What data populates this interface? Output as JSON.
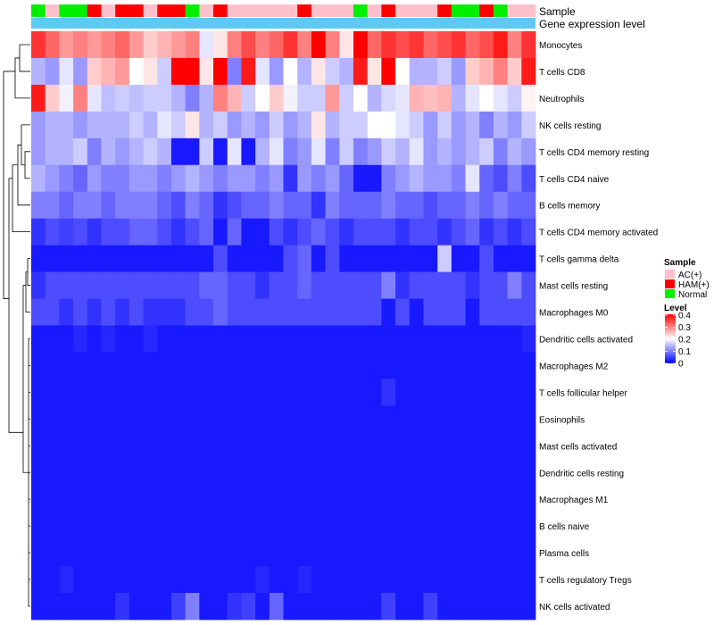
{
  "chart_data": {
    "type": "heatmap",
    "title": "",
    "annotation_labels": {
      "sample": "Sample",
      "expression": "Gene expression level"
    },
    "legend_sample": {
      "title": "Sample",
      "entries": [
        {
          "label": "AC(+)",
          "color": "#ffc0cb"
        },
        {
          "label": "HAM(+)",
          "color": "#ff0000"
        },
        {
          "label": "Normal",
          "color": "#00ee00"
        }
      ]
    },
    "legend_level": {
      "title": "Level",
      "ticks": [
        "0.4",
        "0.3",
        "0.2",
        "0.1",
        "0"
      ],
      "min": 0,
      "max": 0.4,
      "colors": {
        "low": "#0000ff",
        "mid": "#ffffff",
        "high": "#ff0000"
      }
    },
    "expression_bar_color": "#5ec9f5",
    "samples": [
      "Normal",
      "AC(+)",
      "Normal",
      "Normal",
      "HAM(+)",
      "AC(+)",
      "HAM(+)",
      "HAM(+)",
      "AC(+)",
      "HAM(+)",
      "HAM(+)",
      "Normal",
      "AC(+)",
      "HAM(+)",
      "AC(+)",
      "AC(+)",
      "AC(+)",
      "AC(+)",
      "AC(+)",
      "HAM(+)",
      "AC(+)",
      "AC(+)",
      "AC(+)",
      "Normal",
      "AC(+)",
      "HAM(+)",
      "AC(+)",
      "AC(+)",
      "AC(+)",
      "HAM(+)",
      "Normal",
      "Normal",
      "HAM(+)",
      "Normal",
      "AC(+)",
      "AC(+)"
    ],
    "rows": [
      "Monocytes",
      "T cells CD8",
      "Neutrophils",
      "NK cells resting",
      "T cells CD4 memory resting",
      "T cells CD4 naive",
      "B cells memory",
      "T cells CD4 memory activated",
      "T cells gamma delta",
      "Mast cells resting",
      "Macrophages M0",
      "Dendritic cells activated",
      "Macrophages M2",
      "T cells follicular helper",
      "Eosinophils",
      "Mast cells activated",
      "Dendritic cells resting",
      "Macrophages M1",
      "B cells naive",
      "Plasma cells",
      "T cells regulatory  Tregs",
      "NK cells activated"
    ],
    "values": [
      [
        0.36,
        0.32,
        0.28,
        0.3,
        0.28,
        0.3,
        0.32,
        0.28,
        0.24,
        0.26,
        0.28,
        0.3,
        0.18,
        0.22,
        0.3,
        0.34,
        0.3,
        0.32,
        0.36,
        0.3,
        0.4,
        0.3,
        0.22,
        0.4,
        0.32,
        0.36,
        0.34,
        0.36,
        0.32,
        0.34,
        0.36,
        0.32,
        0.34,
        0.38,
        0.3,
        0.36
      ],
      [
        0.14,
        0.12,
        0.18,
        0.12,
        0.24,
        0.26,
        0.28,
        0.2,
        0.22,
        0.16,
        0.4,
        0.4,
        0.22,
        0.4,
        0.1,
        0.38,
        0.18,
        0.12,
        0.2,
        0.14,
        0.22,
        0.16,
        0.14,
        0.38,
        0.22,
        0.4,
        0.2,
        0.14,
        0.14,
        0.16,
        0.12,
        0.24,
        0.26,
        0.3,
        0.24,
        0.38
      ],
      [
        0.38,
        0.24,
        0.19,
        0.3,
        0.18,
        0.15,
        0.16,
        0.15,
        0.16,
        0.16,
        0.14,
        0.1,
        0.14,
        0.3,
        0.26,
        0.16,
        0.2,
        0.24,
        0.19,
        0.16,
        0.16,
        0.28,
        0.16,
        0.2,
        0.14,
        0.17,
        0.18,
        0.26,
        0.25,
        0.26,
        0.14,
        0.18,
        0.2,
        0.18,
        0.16,
        0.21
      ],
      [
        0.12,
        0.14,
        0.14,
        0.12,
        0.14,
        0.14,
        0.14,
        0.16,
        0.14,
        0.18,
        0.16,
        0.22,
        0.14,
        0.16,
        0.12,
        0.14,
        0.12,
        0.16,
        0.12,
        0.14,
        0.22,
        0.14,
        0.16,
        0.16,
        0.2,
        0.2,
        0.18,
        0.16,
        0.12,
        0.16,
        0.12,
        0.14,
        0.1,
        0.14,
        0.12,
        0.16
      ],
      [
        0.12,
        0.14,
        0.14,
        0.16,
        0.1,
        0.14,
        0.12,
        0.14,
        0.16,
        0.14,
        0.02,
        0.02,
        0.16,
        0.02,
        0.18,
        0.02,
        0.14,
        0.18,
        0.1,
        0.12,
        0.18,
        0.1,
        0.16,
        0.1,
        0.12,
        0.16,
        0.14,
        0.18,
        0.12,
        0.14,
        0.12,
        0.14,
        0.16,
        0.1,
        0.14,
        0.12
      ],
      [
        0.14,
        0.12,
        0.1,
        0.08,
        0.12,
        0.1,
        0.1,
        0.12,
        0.12,
        0.1,
        0.12,
        0.14,
        0.12,
        0.1,
        0.12,
        0.12,
        0.1,
        0.12,
        0.04,
        0.12,
        0.1,
        0.12,
        0.08,
        0.02,
        0.02,
        0.1,
        0.12,
        0.14,
        0.12,
        0.12,
        0.1,
        0.18,
        0.08,
        0.06,
        0.1,
        0.06
      ],
      [
        0.1,
        0.1,
        0.08,
        0.1,
        0.1,
        0.08,
        0.1,
        0.1,
        0.1,
        0.08,
        0.06,
        0.1,
        0.08,
        0.04,
        0.06,
        0.08,
        0.08,
        0.1,
        0.08,
        0.08,
        0.04,
        0.1,
        0.08,
        0.08,
        0.08,
        0.1,
        0.08,
        0.08,
        0.06,
        0.08,
        0.08,
        0.1,
        0.08,
        0.1,
        0.08,
        0.08
      ],
      [
        0.04,
        0.06,
        0.05,
        0.06,
        0.04,
        0.06,
        0.06,
        0.08,
        0.08,
        0.06,
        0.04,
        0.06,
        0.08,
        0.02,
        0.08,
        0.02,
        0.02,
        0.06,
        0.04,
        0.06,
        0.08,
        0.06,
        0.04,
        0.06,
        0.06,
        0.06,
        0.04,
        0.06,
        0.06,
        0.04,
        0.06,
        0.08,
        0.04,
        0.06,
        0.04,
        0.06
      ],
      [
        0.02,
        0.02,
        0.02,
        0.02,
        0.02,
        0.02,
        0.02,
        0.02,
        0.02,
        0.02,
        0.02,
        0.02,
        0.02,
        0.06,
        0.02,
        0.02,
        0.02,
        0.02,
        0.06,
        0.08,
        0.02,
        0.06,
        0.02,
        0.02,
        0.02,
        0.02,
        0.02,
        0.02,
        0.02,
        0.16,
        0.02,
        0.02,
        0.06,
        0.02,
        0.02,
        0.02
      ],
      [
        0.04,
        0.06,
        0.06,
        0.06,
        0.06,
        0.06,
        0.06,
        0.06,
        0.06,
        0.06,
        0.06,
        0.06,
        0.08,
        0.08,
        0.06,
        0.06,
        0.04,
        0.06,
        0.06,
        0.08,
        0.06,
        0.06,
        0.06,
        0.06,
        0.06,
        0.1,
        0.04,
        0.06,
        0.06,
        0.06,
        0.06,
        0.04,
        0.06,
        0.06,
        0.1,
        0.06
      ],
      [
        0.06,
        0.06,
        0.04,
        0.06,
        0.04,
        0.06,
        0.04,
        0.06,
        0.04,
        0.04,
        0.04,
        0.06,
        0.06,
        0.08,
        0.06,
        0.06,
        0.06,
        0.06,
        0.06,
        0.06,
        0.06,
        0.06,
        0.06,
        0.06,
        0.06,
        0.02,
        0.06,
        0.02,
        0.06,
        0.06,
        0.06,
        0.02,
        0.06,
        0.06,
        0.06,
        0.06
      ],
      [
        0.02,
        0.02,
        0.02,
        0.03,
        0.02,
        0.03,
        0.02,
        0.02,
        0.03,
        0.02,
        0.02,
        0.02,
        0.02,
        0.02,
        0.02,
        0.02,
        0.02,
        0.02,
        0.02,
        0.02,
        0.02,
        0.02,
        0.02,
        0.02,
        0.02,
        0.02,
        0.02,
        0.02,
        0.02,
        0.02,
        0.02,
        0.02,
        0.02,
        0.02,
        0.02,
        0.03
      ],
      [
        0.02,
        0.02,
        0.02,
        0.02,
        0.02,
        0.02,
        0.02,
        0.02,
        0.02,
        0.02,
        0.02,
        0.02,
        0.02,
        0.02,
        0.02,
        0.02,
        0.02,
        0.02,
        0.02,
        0.02,
        0.02,
        0.02,
        0.02,
        0.02,
        0.02,
        0.02,
        0.02,
        0.02,
        0.02,
        0.02,
        0.02,
        0.02,
        0.02,
        0.02,
        0.02,
        0.02
      ],
      [
        0.02,
        0.02,
        0.02,
        0.02,
        0.02,
        0.02,
        0.02,
        0.02,
        0.02,
        0.02,
        0.02,
        0.02,
        0.02,
        0.02,
        0.02,
        0.02,
        0.02,
        0.02,
        0.02,
        0.02,
        0.02,
        0.02,
        0.02,
        0.02,
        0.02,
        0.04,
        0.02,
        0.02,
        0.02,
        0.02,
        0.02,
        0.02,
        0.02,
        0.02,
        0.02,
        0.02
      ],
      [
        0.02,
        0.02,
        0.02,
        0.02,
        0.02,
        0.02,
        0.02,
        0.02,
        0.02,
        0.02,
        0.02,
        0.02,
        0.02,
        0.02,
        0.02,
        0.02,
        0.02,
        0.02,
        0.02,
        0.02,
        0.02,
        0.02,
        0.02,
        0.02,
        0.02,
        0.02,
        0.02,
        0.02,
        0.02,
        0.02,
        0.02,
        0.02,
        0.02,
        0.02,
        0.02,
        0.02
      ],
      [
        0.02,
        0.02,
        0.02,
        0.02,
        0.02,
        0.02,
        0.02,
        0.02,
        0.02,
        0.02,
        0.02,
        0.02,
        0.02,
        0.02,
        0.02,
        0.02,
        0.02,
        0.02,
        0.02,
        0.02,
        0.02,
        0.02,
        0.02,
        0.02,
        0.02,
        0.02,
        0.02,
        0.02,
        0.02,
        0.02,
        0.02,
        0.02,
        0.02,
        0.02,
        0.02,
        0.02
      ],
      [
        0.02,
        0.02,
        0.02,
        0.02,
        0.02,
        0.02,
        0.02,
        0.02,
        0.02,
        0.02,
        0.02,
        0.02,
        0.02,
        0.02,
        0.02,
        0.02,
        0.02,
        0.02,
        0.02,
        0.02,
        0.02,
        0.02,
        0.02,
        0.02,
        0.02,
        0.02,
        0.02,
        0.02,
        0.02,
        0.02,
        0.02,
        0.02,
        0.02,
        0.02,
        0.02,
        0.02
      ],
      [
        0.02,
        0.02,
        0.02,
        0.02,
        0.02,
        0.02,
        0.02,
        0.02,
        0.02,
        0.02,
        0.02,
        0.02,
        0.02,
        0.02,
        0.02,
        0.02,
        0.02,
        0.02,
        0.02,
        0.02,
        0.02,
        0.02,
        0.02,
        0.02,
        0.02,
        0.02,
        0.02,
        0.02,
        0.02,
        0.02,
        0.02,
        0.02,
        0.02,
        0.02,
        0.02,
        0.02
      ],
      [
        0.02,
        0.02,
        0.02,
        0.02,
        0.02,
        0.02,
        0.02,
        0.02,
        0.02,
        0.02,
        0.02,
        0.02,
        0.02,
        0.02,
        0.02,
        0.02,
        0.02,
        0.02,
        0.02,
        0.02,
        0.02,
        0.02,
        0.02,
        0.02,
        0.02,
        0.02,
        0.02,
        0.02,
        0.02,
        0.02,
        0.02,
        0.02,
        0.02,
        0.02,
        0.02,
        0.02
      ],
      [
        0.02,
        0.02,
        0.02,
        0.02,
        0.02,
        0.02,
        0.02,
        0.02,
        0.02,
        0.02,
        0.02,
        0.02,
        0.02,
        0.02,
        0.02,
        0.02,
        0.02,
        0.02,
        0.02,
        0.02,
        0.02,
        0.02,
        0.02,
        0.02,
        0.02,
        0.02,
        0.02,
        0.02,
        0.02,
        0.02,
        0.02,
        0.02,
        0.02,
        0.02,
        0.02,
        0.02
      ],
      [
        0.02,
        0.02,
        0.03,
        0.02,
        0.02,
        0.02,
        0.02,
        0.02,
        0.02,
        0.02,
        0.02,
        0.02,
        0.02,
        0.02,
        0.02,
        0.02,
        0.03,
        0.02,
        0.02,
        0.03,
        0.02,
        0.02,
        0.02,
        0.02,
        0.02,
        0.02,
        0.02,
        0.02,
        0.02,
        0.02,
        0.02,
        0.02,
        0.02,
        0.02,
        0.02,
        0.02
      ],
      [
        0.02,
        0.02,
        0.02,
        0.02,
        0.02,
        0.02,
        0.04,
        0.02,
        0.02,
        0.02,
        0.05,
        0.1,
        0.02,
        0.02,
        0.04,
        0.05,
        0.02,
        0.08,
        0.02,
        0.02,
        0.02,
        0.02,
        0.02,
        0.02,
        0.02,
        0.05,
        0.02,
        0.02,
        0.05,
        0.02,
        0.02,
        0.02,
        0.02,
        0.02,
        0.02,
        0.02
      ]
    ]
  }
}
